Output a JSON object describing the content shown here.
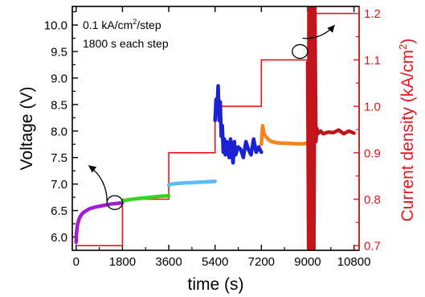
{
  "chart_data": {
    "type": "line",
    "xlabel": "time (s)",
    "ylabel_left": "Voltage (V)",
    "ylabel_right_parts": [
      "Current density (kA/cm",
      "2",
      ")"
    ],
    "xlim": [
      -150,
      11000
    ],
    "ylim_left": [
      5.75,
      10.35
    ],
    "ylim_right": [
      0.69,
      1.215
    ],
    "x_ticks": [
      0,
      1800,
      3600,
      5400,
      7200,
      9000,
      10800
    ],
    "x_tick_labels": [
      "0",
      "1800",
      "3600",
      "5400",
      "7200",
      "9000",
      "10800"
    ],
    "y_left_ticks": [
      6.0,
      6.5,
      7.0,
      7.5,
      8.0,
      8.5,
      9.0,
      9.5,
      10.0
    ],
    "y_left_tick_labels": [
      "6.0",
      "6.5",
      "7.0",
      "7.5",
      "8.0",
      "8.5",
      "9.0",
      "9.5",
      "10.0"
    ],
    "y_right_ticks": [
      0.7,
      0.8,
      0.9,
      1.0,
      1.1,
      1.2
    ],
    "y_right_tick_labels": [
      "0.7",
      "0.8",
      "0.9",
      "1.0",
      "1.1",
      "1.2"
    ],
    "annotation_line1_parts": [
      "0.1 kA/cm",
      "2",
      "/step"
    ],
    "annotation_line2": "1800 s each step",
    "current_step": {
      "axis": "right",
      "color": "#e8141b",
      "x": [
        0,
        1800,
        1800,
        3600,
        3600,
        5400,
        5400,
        7200,
        7200,
        9000,
        9000,
        10800
      ],
      "y": [
        0.7,
        0.7,
        0.8,
        0.8,
        0.9,
        0.9,
        1.0,
        1.0,
        1.1,
        1.1,
        1.2,
        1.2
      ]
    },
    "voltage_series": [
      {
        "color": "#a21bd0",
        "x": [
          0,
          10,
          30,
          60,
          100,
          150,
          220,
          300,
          400,
          500,
          700,
          900,
          1100,
          1300,
          1500,
          1700,
          1800
        ],
        "y": [
          5.9,
          6.05,
          6.15,
          6.25,
          6.32,
          6.38,
          6.43,
          6.47,
          6.5,
          6.53,
          6.56,
          6.58,
          6.6,
          6.62,
          6.63,
          6.64,
          6.65
        ]
      },
      {
        "color": "#36d31f",
        "x": [
          1800,
          2100,
          2500,
          2900,
          3300,
          3600
        ],
        "y": [
          6.68,
          6.71,
          6.73,
          6.75,
          6.77,
          6.78
        ]
      },
      {
        "color": "#5bbcf0",
        "x": [
          3600,
          3700,
          3900,
          4200,
          4600,
          5000,
          5400
        ],
        "y": [
          6.98,
          7.0,
          7.01,
          7.02,
          7.03,
          7.04,
          7.05
        ]
      },
      {
        "color": "#1a22d2",
        "x": [
          5400,
          5440,
          5480,
          5520,
          5560,
          5600,
          5640,
          5680,
          5720,
          5760,
          5800,
          5850,
          5900,
          5950,
          6000,
          6050,
          6100,
          6150,
          6200,
          6300,
          6400,
          6500,
          6600,
          6700,
          6800,
          6900,
          7000,
          7100,
          7200
        ],
        "y": [
          8.2,
          8.6,
          8.4,
          8.85,
          8.2,
          8.55,
          7.9,
          8.1,
          7.6,
          7.85,
          7.55,
          7.8,
          7.7,
          7.5,
          7.85,
          7.6,
          7.4,
          7.8,
          7.55,
          7.7,
          7.65,
          7.5,
          7.8,
          7.65,
          7.55,
          7.85,
          7.6,
          7.7,
          7.6
        ]
      },
      {
        "color": "#f5831f",
        "x": [
          7200,
          7250,
          7300,
          7400,
          7500,
          7600,
          7800,
          8000,
          8200,
          8500,
          8800,
          9000
        ],
        "y": [
          7.75,
          8.1,
          7.95,
          7.88,
          7.83,
          7.8,
          7.78,
          7.77,
          7.77,
          7.76,
          7.76,
          7.77
        ]
      },
      {
        "color": "#c4141b",
        "x": [
          9000,
          9040,
          9070,
          9100,
          9130,
          9160,
          9200,
          9240,
          9280,
          9320,
          9360,
          9400,
          9500,
          9600,
          9800,
          10000,
          10200,
          10400,
          10600,
          10800
        ],
        "y": [
          9.3,
          5.6,
          10.5,
          5.6,
          10.2,
          6.0,
          10.5,
          5.6,
          10.4,
          7.8,
          8.05,
          7.95,
          8.0,
          7.95,
          7.98,
          7.97,
          8.02,
          7.95,
          8.0,
          7.96
        ]
      }
    ],
    "ellipses": [
      {
        "x": 1500,
        "y": 6.65,
        "rx": 300,
        "ry": 0.13
      },
      {
        "x": 8700,
        "y": 9.5,
        "rx": 300,
        "ry": 0.13
      }
    ],
    "arrows": [
      {
        "x1": 1200,
        "y1": 6.67,
        "x2": 480,
        "y2": 7.35
      },
      {
        "x1": 8800,
        "y1": 9.75,
        "x2": 10050,
        "y2": 10.0
      }
    ]
  }
}
